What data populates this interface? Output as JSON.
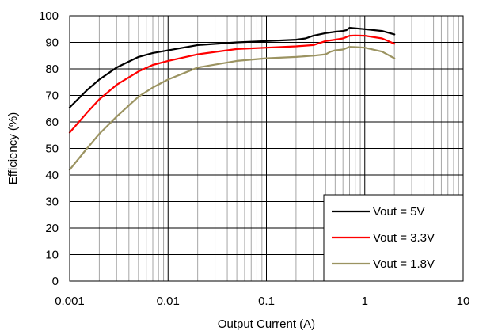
{
  "chart_data": {
    "type": "line",
    "title": "",
    "xlabel": "Output Current (A)",
    "ylabel": "Efficiency (%)",
    "xscale": "log",
    "xlim": [
      0.001,
      10
    ],
    "ylim": [
      0,
      100
    ],
    "xticks": [
      0.001,
      0.01,
      0.1,
      1,
      10
    ],
    "xtick_labels": [
      "0.001",
      "0.01",
      "0.1",
      "1",
      "10"
    ],
    "yticks": [
      0,
      10,
      20,
      30,
      40,
      50,
      60,
      70,
      80,
      90,
      100
    ],
    "ytick_labels": [
      "0",
      "10",
      "20",
      "30",
      "40",
      "50",
      "60",
      "70",
      "80",
      "90",
      "100"
    ],
    "grid": true,
    "legend_position": "bottom-right",
    "series": [
      {
        "name": "Vout = 5V",
        "color": "#000000",
        "x": [
          0.001,
          0.0015,
          0.002,
          0.003,
          0.005,
          0.007,
          0.01,
          0.02,
          0.05,
          0.1,
          0.2,
          0.25,
          0.3,
          0.4,
          0.5,
          0.6,
          0.65,
          0.7,
          0.8,
          1.0,
          1.5,
          2.0
        ],
        "y": [
          65.5,
          72,
          76,
          80.5,
          84.5,
          86,
          87,
          89,
          90,
          90.5,
          91,
          91.5,
          92.5,
          93.5,
          94,
          94.3,
          94.6,
          95.5,
          95.3,
          95,
          94.3,
          93
        ]
      },
      {
        "name": "Vout = 3.3V",
        "color": "#ff0000",
        "x": [
          0.001,
          0.0015,
          0.002,
          0.003,
          0.005,
          0.007,
          0.01,
          0.02,
          0.05,
          0.1,
          0.2,
          0.3,
          0.4,
          0.5,
          0.6,
          0.65,
          0.7,
          0.8,
          1.0,
          1.5,
          2.0
        ],
        "y": [
          56,
          63.5,
          68.5,
          74,
          79,
          81.5,
          83,
          85.5,
          87.5,
          88,
          88.5,
          89,
          90.5,
          91,
          91.5,
          92,
          92.5,
          92.6,
          92.5,
          91.5,
          89.5
        ]
      },
      {
        "name": "Vout = 1.8V",
        "color": "#9b9361",
        "x": [
          0.001,
          0.0015,
          0.002,
          0.003,
          0.005,
          0.007,
          0.01,
          0.02,
          0.05,
          0.1,
          0.2,
          0.3,
          0.4,
          0.45,
          0.5,
          0.6,
          0.7,
          0.8,
          1.0,
          1.5,
          2.0
        ],
        "y": [
          42,
          50,
          55.5,
          62,
          69.5,
          73,
          76,
          80.5,
          83,
          84,
          84.5,
          85,
          85.5,
          86.5,
          87,
          87.3,
          88.3,
          88.2,
          88,
          86.5,
          84
        ]
      }
    ]
  }
}
